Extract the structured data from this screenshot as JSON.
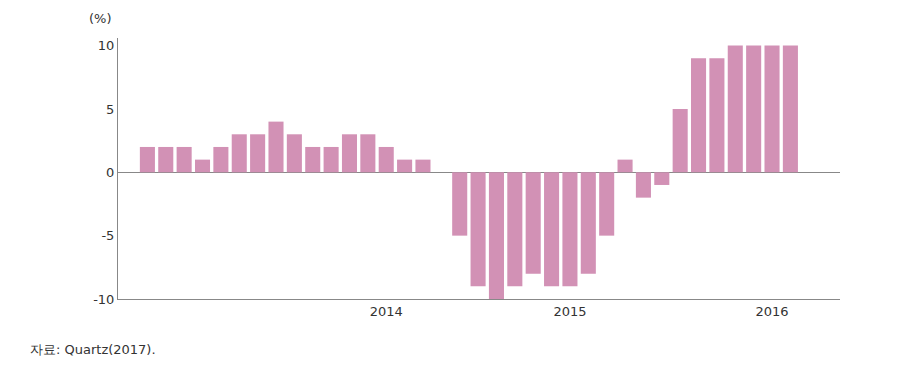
{
  "chart_data": {
    "type": "bar",
    "ylabel": "(%)",
    "source": "자료: Quartz(2017).",
    "categories": [
      null,
      null,
      null,
      null,
      null,
      null,
      null,
      null,
      null,
      null,
      null,
      null,
      null,
      "2014",
      null,
      null,
      null,
      null,
      null,
      null,
      null,
      null,
      null,
      "2015",
      null,
      null,
      null,
      null,
      null,
      null,
      null,
      null,
      null,
      null,
      "2016",
      null
    ],
    "values": [
      2,
      2,
      2,
      1,
      2,
      3,
      3,
      4,
      3,
      2,
      2,
      3,
      3,
      2,
      1,
      1,
      null,
      -5,
      -9,
      -10,
      -9,
      -8,
      -9,
      -9,
      -8,
      -5,
      1,
      -2,
      -1,
      5,
      9,
      9,
      10,
      10,
      10,
      10
    ],
    "color": "#d291b5",
    "ylim": [
      -10,
      10.6
    ],
    "yticks": [
      -10,
      -5,
      0,
      5,
      10
    ],
    "grid": false
  }
}
